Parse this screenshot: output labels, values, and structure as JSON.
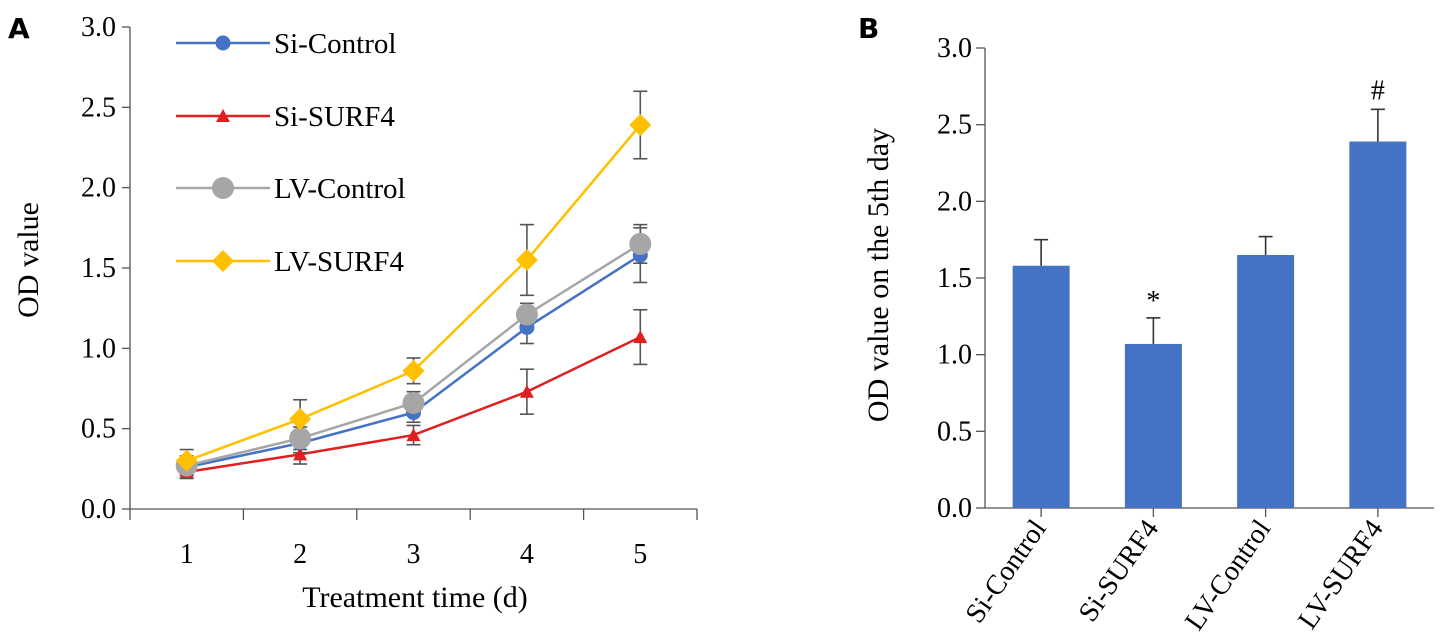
{
  "chart_data": [
    {
      "panel": "A",
      "type": "line",
      "xlabel": "Treatment time (d)",
      "ylabel": "OD value",
      "x": [
        1,
        2,
        3,
        4,
        5
      ],
      "ylim": [
        0.0,
        3.0
      ],
      "yticks": [
        "0.0",
        "0.5",
        "1.0",
        "1.5",
        "2.0",
        "2.5",
        "3.0"
      ],
      "xticks": [
        "1",
        "2",
        "3",
        "4",
        "5"
      ],
      "legend_position": "top-left",
      "grid": false,
      "series": [
        {
          "name": "Si-Control",
          "color": "#4472C4",
          "marker": "circle",
          "values": [
            0.26,
            0.41,
            0.6,
            1.13,
            1.58
          ],
          "errors": [
            0.05,
            0.06,
            0.06,
            0.1,
            0.17
          ]
        },
        {
          "name": "Si-SURF4",
          "color": "#E02020",
          "marker": "triangle",
          "values": [
            0.23,
            0.34,
            0.46,
            0.73,
            1.07
          ],
          "errors": [
            0.04,
            0.06,
            0.06,
            0.14,
            0.17
          ]
        },
        {
          "name": "LV-Control",
          "color": "#A6A6A6",
          "marker": "circle",
          "values": [
            0.27,
            0.44,
            0.66,
            1.21,
            1.65
          ],
          "errors": [
            0.06,
            0.07,
            0.07,
            0.07,
            0.12
          ]
        },
        {
          "name": "LV-SURF4",
          "color": "#FFC000",
          "marker": "diamond",
          "values": [
            0.3,
            0.56,
            0.86,
            1.55,
            2.39
          ],
          "errors": [
            0.07,
            0.12,
            0.08,
            0.22,
            0.21
          ]
        }
      ]
    },
    {
      "panel": "B",
      "type": "bar",
      "ylabel": "OD value on the 5th day",
      "categories": [
        "Si-Control",
        "Si-SURF4",
        "LV-Control",
        "LV-SURF4"
      ],
      "values": [
        1.58,
        1.07,
        1.65,
        2.39
      ],
      "errors": [
        0.17,
        0.17,
        0.12,
        0.21
      ],
      "annotations": [
        "",
        "*",
        "",
        "#"
      ],
      "bar_color": "#4472C4",
      "ylim": [
        0.0,
        3.0
      ],
      "yticks": [
        "0.0",
        "0.5",
        "1.0",
        "1.5",
        "2.0",
        "2.5",
        "3.0"
      ],
      "grid": false
    }
  ]
}
